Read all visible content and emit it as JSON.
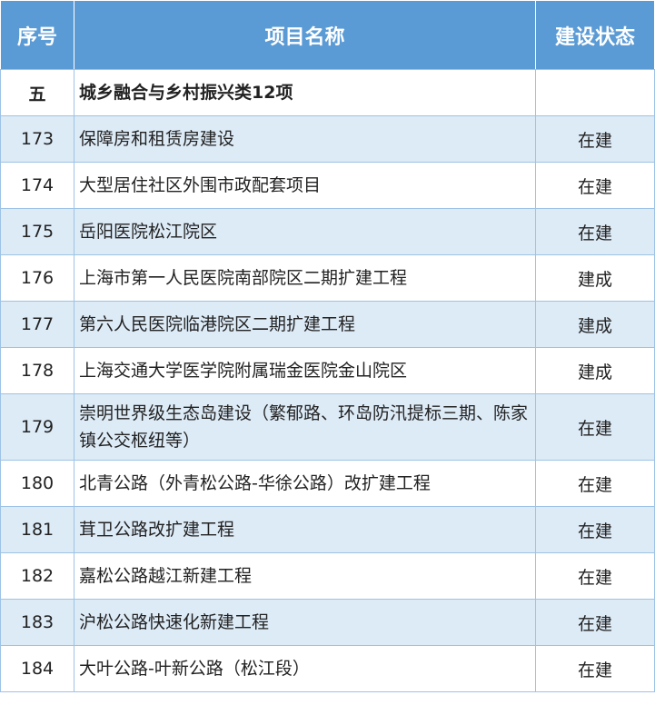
{
  "header": {
    "no": "序号",
    "name": "项目名称",
    "status": "建设状态"
  },
  "section": {
    "no": "五",
    "name": "城乡融合与乡村振兴类12项",
    "status": ""
  },
  "rows": [
    {
      "no": "173",
      "name": "保障房和租赁房建设",
      "status": "在建"
    },
    {
      "no": "174",
      "name": "大型居住社区外围市政配套项目",
      "status": "在建"
    },
    {
      "no": "175",
      "name": "岳阳医院松江院区",
      "status": "在建"
    },
    {
      "no": "176",
      "name": "上海市第一人民医院南部院区二期扩建工程",
      "status": "建成"
    },
    {
      "no": "177",
      "name": "第六人民医院临港院区二期扩建工程",
      "status": "建成"
    },
    {
      "no": "178",
      "name": "上海交通大学医学院附属瑞金医院金山院区",
      "status": "建成"
    },
    {
      "no": "179",
      "name": "崇明世界级生态岛建设（繁郁路、环岛防汛提标三期、陈家镇公交枢纽等）",
      "status": "在建"
    },
    {
      "no": "180",
      "name": "北青公路（外青松公路-华徐公路）改扩建工程",
      "status": "在建"
    },
    {
      "no": "181",
      "name": "茸卫公路改扩建工程",
      "status": "在建"
    },
    {
      "no": "182",
      "name": "嘉松公路越江新建工程",
      "status": "在建"
    },
    {
      "no": "183",
      "name": "沪松公路快速化新建工程",
      "status": "在建"
    },
    {
      "no": "184",
      "name": "大叶公路-叶新公路（松江段）",
      "status": "在建"
    }
  ],
  "colors": {
    "header": "#5b9bd5",
    "alt_row": "#ddebf7",
    "border": "#9dc3e6"
  }
}
